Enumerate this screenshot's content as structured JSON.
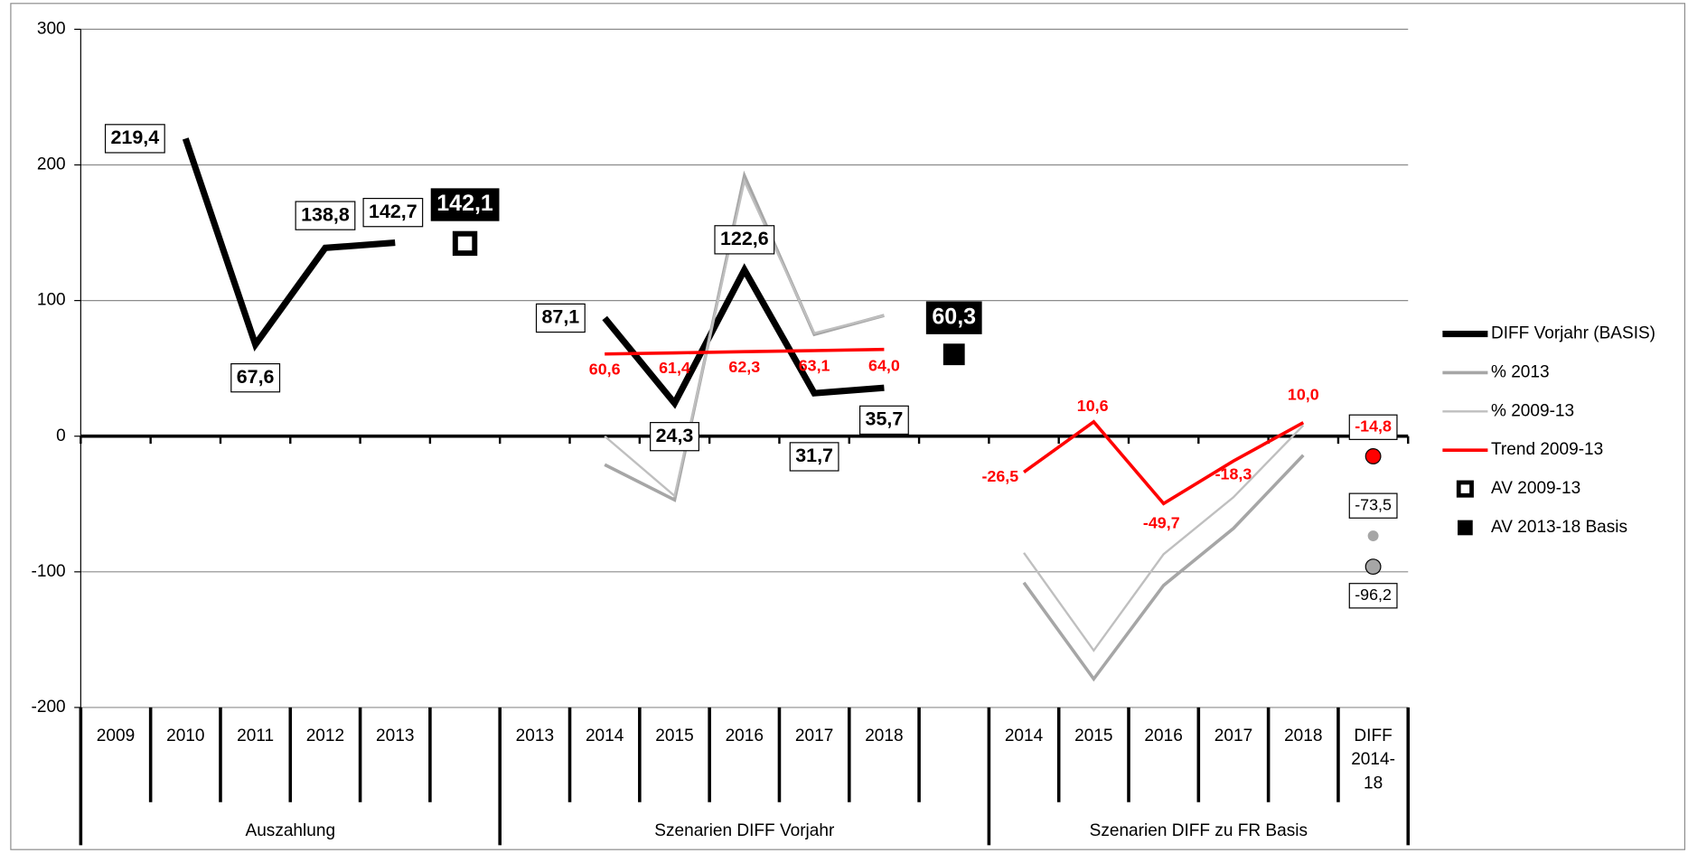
{
  "chart_data": {
    "type": "line",
    "categories": [
      "2009",
      "2010",
      "2011",
      "2012",
      "2013",
      null,
      "2013",
      "2014",
      "2015",
      "2016",
      "2017",
      "2018",
      null,
      "2014",
      "2015",
      "2016",
      "2017",
      "2018",
      "DIFF\n2014-\n18"
    ],
    "groups": [
      "Auszahlung",
      "Szenarien DIFF Vorjahr",
      "Szenarien DIFF zu FR Basis"
    ],
    "ylim": [
      -200,
      300
    ],
    "yticks": [
      -200,
      -100,
      0,
      100,
      200,
      300
    ],
    "grid": true,
    "legend": "right",
    "series": [
      {
        "name": "DIFF Vorjahr (BASIS)",
        "color": "#000000",
        "marker": "line",
        "width": 6,
        "values": [
          null,
          219.4,
          67.6,
          138.8,
          142.7,
          null,
          null,
          87.1,
          24.3,
          122.6,
          31.7,
          35.7,
          null,
          null,
          null,
          null,
          null,
          null,
          null
        ],
        "value_labels": [
          null,
          "219,4",
          "67,6",
          "138,8",
          "142,7",
          null,
          null,
          "87,1",
          "24,3",
          "122,6",
          "31,7",
          "35,7",
          null,
          null,
          null,
          null,
          null,
          null,
          null
        ]
      },
      {
        "name": "% 2013",
        "color": "#a6a6a6",
        "marker": "line",
        "width": 3,
        "values": [
          null,
          null,
          null,
          null,
          null,
          null,
          null,
          -21,
          -47,
          192,
          75,
          89,
          null,
          -108,
          -179,
          -110,
          -68,
          -14,
          null
        ]
      },
      {
        "name": "% 2009-13",
        "color": "#bfbfbf",
        "marker": "line",
        "width": 2,
        "values": [
          null,
          null,
          null,
          null,
          null,
          null,
          null,
          0,
          -44,
          188,
          76,
          89,
          null,
          -86,
          -158,
          -87,
          -45,
          8,
          null
        ]
      },
      {
        "name": "Trend 2009-13",
        "color": "#ff0000",
        "marker": "line",
        "width": 3,
        "values": [
          null,
          null,
          null,
          null,
          null,
          null,
          null,
          60.6,
          61.4,
          62.3,
          63.1,
          64.0,
          null,
          -26.5,
          10.6,
          -49.7,
          -18.3,
          10.0,
          null
        ],
        "value_labels": [
          null,
          null,
          null,
          null,
          null,
          null,
          null,
          "60,6",
          "61,4",
          "62,3",
          "63,1",
          "64,0",
          null,
          "-26,5",
          "10,6",
          "-49,7",
          "-18,3",
          "10,0",
          null
        ]
      },
      {
        "name": "AV 2009-13",
        "color": "#000000",
        "marker": "hollow-square",
        "values": [
          null,
          null,
          null,
          null,
          null,
          142.1,
          null,
          null,
          null,
          null,
          null,
          null,
          null,
          null,
          null,
          null,
          null,
          null,
          null
        ],
        "value_labels": [
          null,
          null,
          null,
          null,
          null,
          "142,1",
          null,
          null,
          null,
          null,
          null,
          null,
          null,
          null,
          null,
          null,
          null,
          null,
          null
        ]
      },
      {
        "name": "AV 2013-18 Basis",
        "color": "#000000",
        "marker": "square",
        "values": [
          null,
          null,
          null,
          null,
          null,
          null,
          null,
          null,
          null,
          null,
          null,
          null,
          60.3,
          null,
          null,
          null,
          null,
          null,
          null
        ],
        "value_labels": [
          null,
          null,
          null,
          null,
          null,
          null,
          null,
          null,
          null,
          null,
          null,
          null,
          "60,3",
          null,
          null,
          null,
          null,
          null,
          null
        ]
      }
    ],
    "points": [
      {
        "value": -14.8,
        "label": "-14,8",
        "color": "#ff0000"
      },
      {
        "value": -73.5,
        "label": "-73,5",
        "color": "#a6a6a6"
      },
      {
        "value": -96.2,
        "label": "-96,2",
        "color": "#a6a6a6"
      }
    ]
  }
}
